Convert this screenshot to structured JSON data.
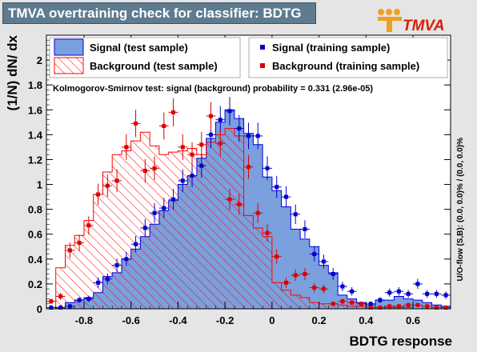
{
  "title": "TMVA overtraining check for classifier: BDTG",
  "logo_text": "TMVA",
  "chart_data": {
    "type": "histogram",
    "xlabel": "BDTG response",
    "ylabel": "(1/N) dN/ dx",
    "xlim": [
      -0.96,
      0.76
    ],
    "ylim": [
      0,
      2.2
    ],
    "x_ticks": [
      -0.8,
      -0.6,
      -0.4,
      -0.2,
      0,
      0.2,
      0.4,
      0.6
    ],
    "x_tick_labels": [
      "-0.8",
      "-0.6",
      "-0.4",
      "-0.2",
      "0",
      "0.2",
      "0.4",
      "0.6"
    ],
    "y_ticks": [
      0,
      0.2,
      0.4,
      0.6,
      0.8,
      1,
      1.2,
      1.4,
      1.6,
      1.8,
      2
    ],
    "y_tick_labels": [
      "0",
      "0.2",
      "0.4",
      "0.6",
      "0.8",
      "1",
      "1.2",
      "1.4",
      "1.6",
      "1.8",
      "2"
    ],
    "bin_start": -0.96,
    "bin_width": 0.04,
    "annotation": "Kolmogorov-Smirnov test: signal (background) probability = 0.331 (2.96e-05)",
    "side_note": "U/O-flow (S,B): (0.0, 0.0)% / (0.0, 0.0)%",
    "legend": [
      {
        "label": "Signal (test sample)",
        "style": "signal-fill"
      },
      {
        "label": "Signal (training sample)",
        "style": "signal-marker"
      },
      {
        "label": "Background (test sample)",
        "style": "background-hatch"
      },
      {
        "label": "Background (training sample)",
        "style": "background-marker"
      }
    ],
    "signal_test": [
      0.0,
      0.01,
      0.05,
      0.07,
      0.09,
      0.13,
      0.26,
      0.29,
      0.4,
      0.48,
      0.58,
      0.68,
      0.79,
      0.87,
      1.0,
      1.07,
      1.21,
      1.37,
      1.5,
      1.6,
      1.53,
      1.41,
      1.32,
      1.06,
      0.95,
      0.82,
      0.64,
      0.56,
      0.5,
      0.35,
      0.29,
      0.11,
      0.08,
      0.05,
      0.03,
      0.07,
      0.07,
      0.1,
      0.08,
      0.07,
      0.05,
      0.03,
      0.02
    ],
    "background_test": [
      0.0,
      0.33,
      0.51,
      0.59,
      0.71,
      0.92,
      1.1,
      1.24,
      1.27,
      1.35,
      1.42,
      1.31,
      1.24,
      1.26,
      1.27,
      1.29,
      1.24,
      1.34,
      1.4,
      1.45,
      1.39,
      0.75,
      0.65,
      0.58,
      0.21,
      0.15,
      0.11,
      0.09,
      0.05,
      0.04,
      0.04,
      0.03,
      0.02,
      0.02,
      0.01,
      0.01,
      0.01,
      0.01,
      0.01,
      0.0,
      0.0,
      0.0,
      0.0
    ],
    "signal_train": [
      0.01,
      0.01,
      0.02,
      0.07,
      0.08,
      0.21,
      0.24,
      0.35,
      0.4,
      0.52,
      0.65,
      0.77,
      0.81,
      0.88,
      1.03,
      1.07,
      1.15,
      1.4,
      1.52,
      1.59,
      1.45,
      1.39,
      1.39,
      1.13,
      0.98,
      0.9,
      0.76,
      0.64,
      0.44,
      0.38,
      0.28,
      0.18,
      0.14,
      0.04,
      0.04,
      0.07,
      0.13,
      0.14,
      0.12,
      0.2,
      0.12,
      0.12,
      0.11
    ],
    "background_train": [
      0.06,
      0.1,
      0.47,
      0.53,
      0.67,
      0.92,
      0.99,
      1.03,
      1.3,
      1.49,
      1.11,
      1.13,
      1.47,
      1.58,
      1.3,
      1.24,
      1.32,
      1.55,
      1.33,
      0.88,
      0.84,
      1.14,
      0.77,
      0.61,
      0.42,
      0.21,
      0.27,
      0.28,
      0.17,
      0.16,
      0.04,
      0.06,
      0.05,
      0.04,
      0.01,
      0.01,
      0.02,
      0.02,
      0.03,
      0.03,
      0.02,
      0.01,
      0.01
    ],
    "colors": {
      "signal_fill": "#7aa0de",
      "signal_line": "#0000dd",
      "signal_marker": "#0000cc",
      "background_line": "#ff0000",
      "background_marker": "#dd0000",
      "frame_bg": "#ffffff"
    }
  }
}
